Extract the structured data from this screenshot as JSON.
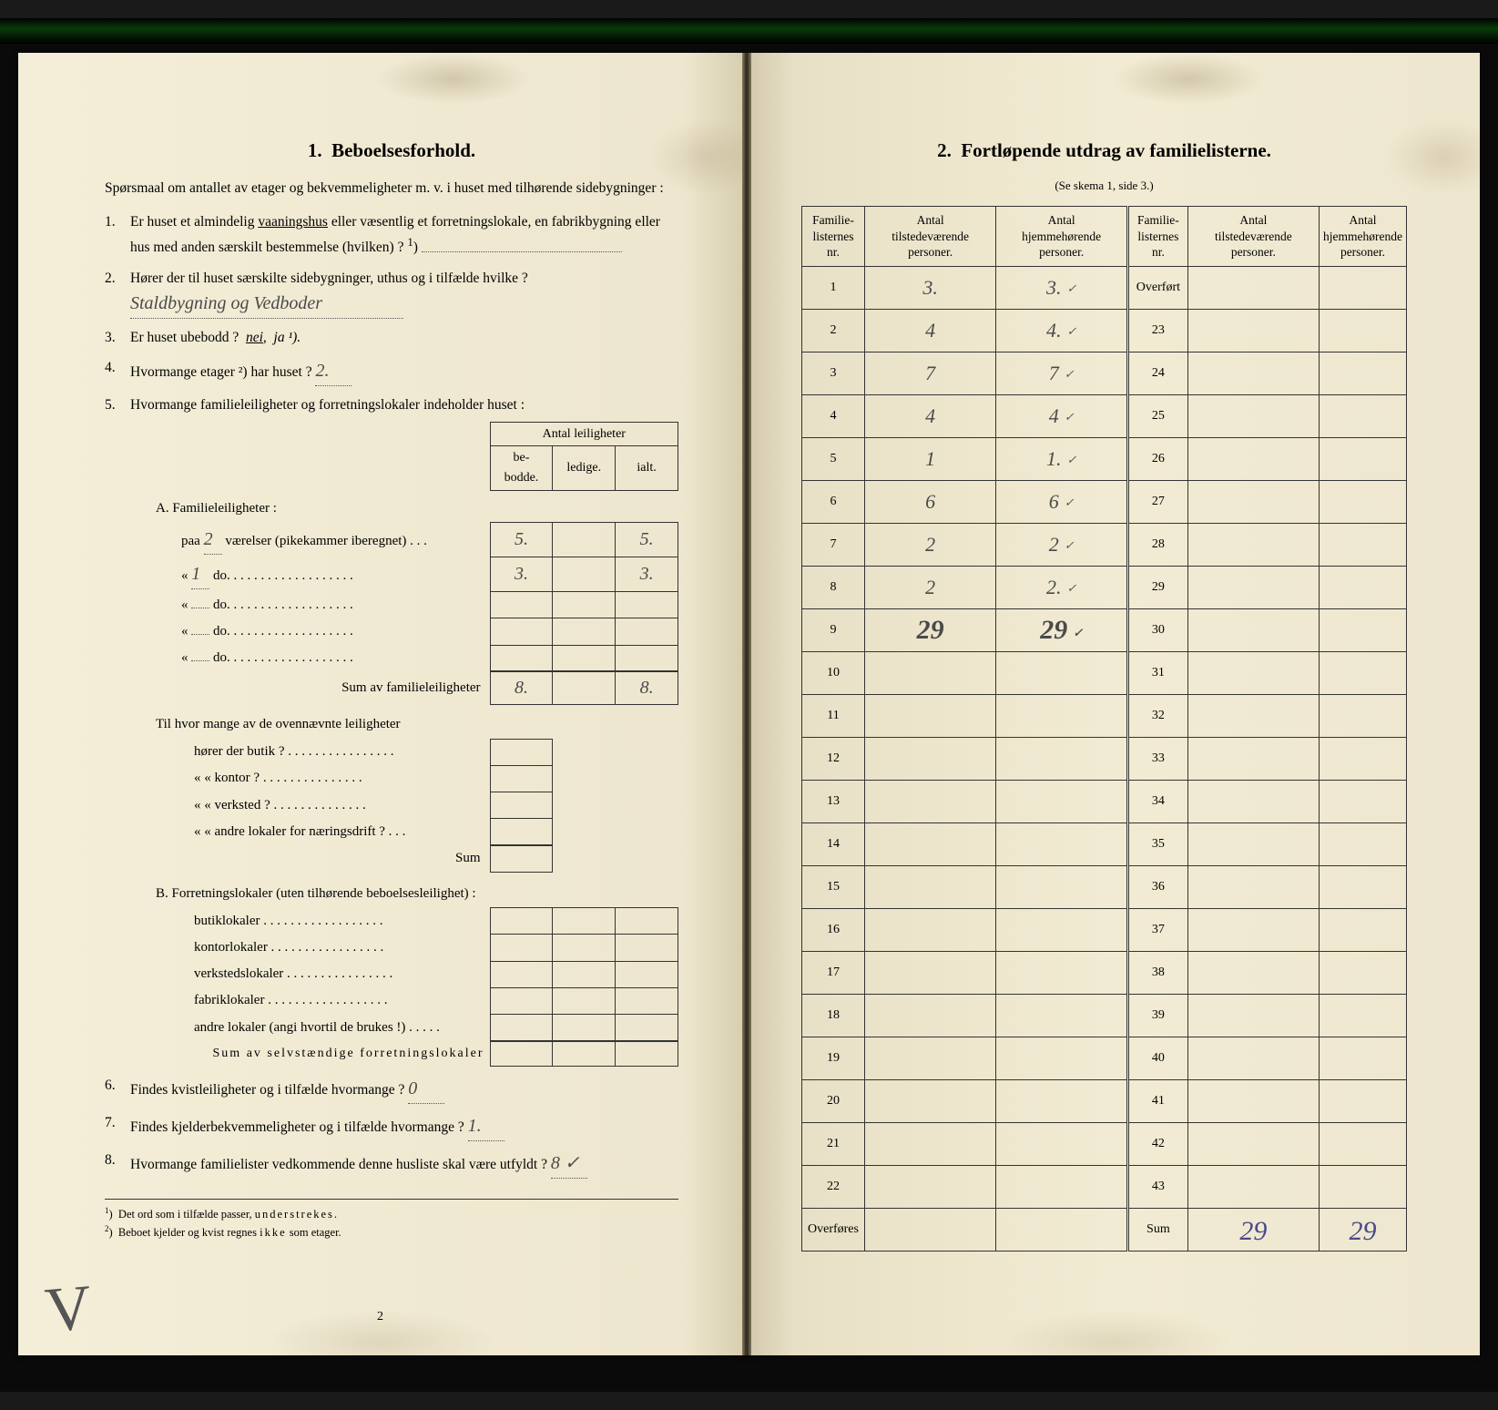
{
  "left": {
    "section_no": "1.",
    "section_title": "Beboelsesforhold.",
    "intro": "Spørsmaal om antallet av etager og bekvemmeligheter m. v. i huset med tilhørende sidebygninger :",
    "q1": "Er huset et almindelig vaaningshus eller væsentlig et forretningslokale, en fabrikbygning eller hus med anden særskilt bestemmelse (hvilken) ? ¹)",
    "q1_underlined": "vaaningshus",
    "q2_pre": "Hører der til huset særskilte sidebygninger, uthus og i tilfælde hvilke ?",
    "q2_ans": "Staldbygning og Vedboder",
    "q3_pre": "Er huset ubebodd ?",
    "q3_opt1": "nei",
    "q3_opt2": "ja ¹).",
    "q4_pre": "Hvormange etager ²) har huset ?",
    "q4_ans": "2.",
    "q5": "Hvormange familieleiligheter og forretningslokaler indeholder huset :",
    "mini_head": "Antal leiligheter",
    "mini_h1": "be-\nbodde.",
    "mini_h2": "ledige.",
    "mini_h3": "ialt.",
    "A_title": "A. Familieleiligheter :",
    "A_rows": [
      {
        "label_pre": "paa",
        "n": "2",
        "label_post": "værelser (pikekammer iberegnet) . . .",
        "b": "5.",
        "l": "",
        "i": "5."
      },
      {
        "label_pre": "«",
        "n": "1",
        "label_post": "do.   . . . . . . . . . . . . . . . . . .",
        "b": "3.",
        "l": "",
        "i": "3."
      },
      {
        "label_pre": "«",
        "n": "",
        "label_post": "do.   . . . . . . . . . . . . . . . . . .",
        "b": "",
        "l": "",
        "i": ""
      },
      {
        "label_pre": "«",
        "n": "",
        "label_post": "do.   . . . . . . . . . . . . . . . . . .",
        "b": "",
        "l": "",
        "i": ""
      },
      {
        "label_pre": "«",
        "n": "",
        "label_post": "do.   . . . . . . . . . . . . . . . . . .",
        "b": "",
        "l": "",
        "i": ""
      }
    ],
    "A_sum_label": "Sum av familieleiligheter",
    "A_sum_b": "8.",
    "A_sum_i": "8.",
    "A_extra_label": "Til hvor mange av de ovennævnte leiligheter",
    "A_extra_rows": [
      "hører der butik ? . . . . . . . . . . . . . . . .",
      "«     «  kontor ? . . . . . . . . . . . . . . .",
      "«     «  verksted ? . . . . . . . . . . . . . .",
      "«     «  andre lokaler for næringsdrift ? . . ."
    ],
    "A_extra_sum": "Sum",
    "B_title": "B. Forretningslokaler (uten tilhørende beboelsesleilighet) :",
    "B_rows": [
      "butiklokaler . . . . . . . . . . . . . . . . . .",
      "kontorlokaler . . . . . . . . . . . . . . . . .",
      "verkstedslokaler . . . . . . . . . . . . . . . .",
      "fabriklokaler . . . . . . . . . . . . . . . . . .",
      "andre lokaler (angi hvortil de brukes !) . . . . ."
    ],
    "B_sum_label": "Sum av selvstændige forretningslokaler",
    "q6_pre": "Findes kvistleiligheter og i tilfælde hvormange ?",
    "q6_ans": "0",
    "q7_pre": "Findes kjelderbekvemmeligheter og i tilfælde hvormange ?",
    "q7_ans": "1.",
    "q8_pre": "Hvormange familielister vedkommende denne husliste skal være utfyldt ?",
    "q8_ans": "8 ✓",
    "fn1": "¹)  Det ord som i tilfælde passer, understrekes.",
    "fn2": "²)  Beboet kjelder og kvist regnes ikke som etager.",
    "page_num": "2"
  },
  "right": {
    "section_no": "2.",
    "section_title": "Fortløpende utdrag av familielisterne.",
    "subtitle": "(Se skema 1, side 3.)",
    "headers": [
      "Familie-\nlisternes\nnr.",
      "Antal\ntilstedeværende\npersoner.",
      "Antal\nhjemmehørende\npersoner.",
      "Familie-\nlisternes\nnr.",
      "Antal\ntilstedeværende\npersoner.",
      "Antal\nhjemmehørende\npersoner."
    ],
    "rows": [
      {
        "n1": "1",
        "a1": "3.",
        "b1": "3.",
        "t1": true,
        "n2": "Overført",
        "a2": "",
        "b2": ""
      },
      {
        "n1": "2",
        "a1": "4",
        "b1": "4.",
        "t1": true,
        "n2": "23",
        "a2": "",
        "b2": ""
      },
      {
        "n1": "3",
        "a1": "7",
        "b1": "7",
        "t1": true,
        "n2": "24",
        "a2": "",
        "b2": ""
      },
      {
        "n1": "4",
        "a1": "4",
        "b1": "4",
        "t1": true,
        "n2": "25",
        "a2": "",
        "b2": ""
      },
      {
        "n1": "5",
        "a1": "1",
        "b1": "1.",
        "t1": true,
        "n2": "26",
        "a2": "",
        "b2": ""
      },
      {
        "n1": "6",
        "a1": "6",
        "b1": "6",
        "t1": true,
        "n2": "27",
        "a2": "",
        "b2": ""
      },
      {
        "n1": "7",
        "a1": "2",
        "b1": "2",
        "t1": true,
        "n2": "28",
        "a2": "",
        "b2": ""
      },
      {
        "n1": "8",
        "a1": "2",
        "b1": "2.",
        "t1": true,
        "n2": "29",
        "a2": "",
        "b2": "",
        "thick": true
      },
      {
        "n1": "9",
        "a1": "29",
        "b1": "29",
        "t1": true,
        "big": true,
        "n2": "30",
        "a2": "",
        "b2": ""
      },
      {
        "n1": "10",
        "a1": "",
        "b1": "",
        "n2": "31",
        "a2": "",
        "b2": ""
      },
      {
        "n1": "11",
        "a1": "",
        "b1": "",
        "n2": "32",
        "a2": "",
        "b2": ""
      },
      {
        "n1": "12",
        "a1": "",
        "b1": "",
        "n2": "33",
        "a2": "",
        "b2": ""
      },
      {
        "n1": "13",
        "a1": "",
        "b1": "",
        "n2": "34",
        "a2": "",
        "b2": ""
      },
      {
        "n1": "14",
        "a1": "",
        "b1": "",
        "n2": "35",
        "a2": "",
        "b2": ""
      },
      {
        "n1": "15",
        "a1": "",
        "b1": "",
        "n2": "36",
        "a2": "",
        "b2": ""
      },
      {
        "n1": "16",
        "a1": "",
        "b1": "",
        "n2": "37",
        "a2": "",
        "b2": ""
      },
      {
        "n1": "17",
        "a1": "",
        "b1": "",
        "n2": "38",
        "a2": "",
        "b2": ""
      },
      {
        "n1": "18",
        "a1": "",
        "b1": "",
        "n2": "39",
        "a2": "",
        "b2": ""
      },
      {
        "n1": "19",
        "a1": "",
        "b1": "",
        "n2": "40",
        "a2": "",
        "b2": ""
      },
      {
        "n1": "20",
        "a1": "",
        "b1": "",
        "n2": "41",
        "a2": "",
        "b2": ""
      },
      {
        "n1": "21",
        "a1": "",
        "b1": "",
        "n2": "42",
        "a2": "",
        "b2": ""
      },
      {
        "n1": "22",
        "a1": "",
        "b1": "",
        "n2": "43",
        "a2": "",
        "b2": ""
      },
      {
        "n1": "Overføres",
        "a1": "",
        "b1": "",
        "n2": "Sum",
        "a2": "29",
        "b2": "29",
        "blue": true
      }
    ]
  }
}
